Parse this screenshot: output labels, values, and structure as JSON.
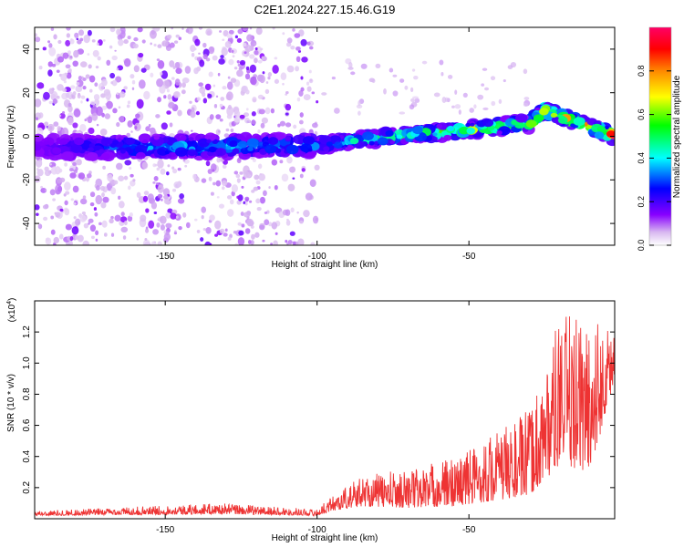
{
  "figure": {
    "title": "C2E1.2024.227.15.46.G19"
  },
  "chart_data": [
    {
      "type": "heatmap",
      "xlabel": "Height of straight line (km)",
      "ylabel": "Frequency (Hz)",
      "xlim": [
        -193,
        -2
      ],
      "ylim": [
        -50,
        50
      ],
      "x_ticks": [
        -150,
        -100,
        -50
      ],
      "y_ticks": [
        -40,
        -20,
        0,
        20,
        40
      ],
      "colorbar": {
        "label": "Normalized spectral amplitude",
        "range": [
          0,
          1
        ],
        "ticks": [
          0.0,
          0.2,
          0.4,
          0.6,
          0.8
        ],
        "colormap": [
          "#ffffff",
          "#d8b8f0",
          "#8800ff",
          "#0000ff",
          "#00ffff",
          "#00ff00",
          "#ffff00",
          "#ff8800",
          "#ff0000",
          "#ff0066"
        ]
      },
      "ridge": {
        "description_points": [
          {
            "x": -193,
            "y": -5
          },
          {
            "x": -150,
            "y": -5
          },
          {
            "x": -100,
            "y": -4
          },
          {
            "x": -75,
            "y": 0
          },
          {
            "x": -50,
            "y": 3
          },
          {
            "x": -30,
            "y": 6
          },
          {
            "x": -25,
            "y": 12
          },
          {
            "x": -2,
            "y": 0
          }
        ],
        "amplitude": [
          {
            "x": -193,
            "v": 0.15
          },
          {
            "x": -150,
            "v": 0.4
          },
          {
            "x": -100,
            "v": 0.35
          },
          {
            "x": -75,
            "v": 0.55
          },
          {
            "x": -50,
            "v": 0.65
          },
          {
            "x": -25,
            "v": 0.75
          },
          {
            "x": -2,
            "v": 0.95
          }
        ]
      },
      "noise_region": {
        "x_from": -193,
        "x_to": -100
      }
    },
    {
      "type": "line",
      "xlabel": "Height of straight line (km)",
      "ylabel": "SNR (10 * v/v)",
      "yexp_label": "(x10",
      "yexp_power": "4",
      "yexp_close": ")",
      "xlim": [
        -193,
        -2
      ],
      "ylim": [
        0,
        1.4
      ],
      "x_ticks": [
        -150,
        -100,
        -50
      ],
      "y_ticks": [
        0.2,
        0.4,
        0.6,
        0.8,
        1.0,
        1.2
      ],
      "color": "#ee3333",
      "envelope": [
        {
          "x": -193,
          "base": 0.02,
          "peak": 0.05
        },
        {
          "x": -132,
          "base": 0.03,
          "peak": 0.1
        },
        {
          "x": -100,
          "base": 0.02,
          "peak": 0.06
        },
        {
          "x": -95,
          "base": 0.05,
          "peak": 0.15
        },
        {
          "x": -85,
          "base": 0.08,
          "peak": 0.28
        },
        {
          "x": -70,
          "base": 0.07,
          "peak": 0.32
        },
        {
          "x": -55,
          "base": 0.08,
          "peak": 0.4
        },
        {
          "x": -40,
          "base": 0.12,
          "peak": 0.58
        },
        {
          "x": -30,
          "base": 0.15,
          "peak": 0.7
        },
        {
          "x": -20,
          "base": 0.35,
          "peak": 1.3
        },
        {
          "x": -10,
          "base": 0.3,
          "peak": 1.35
        },
        {
          "x": -2,
          "base": 0.9,
          "peak": 1.2
        }
      ]
    }
  ]
}
